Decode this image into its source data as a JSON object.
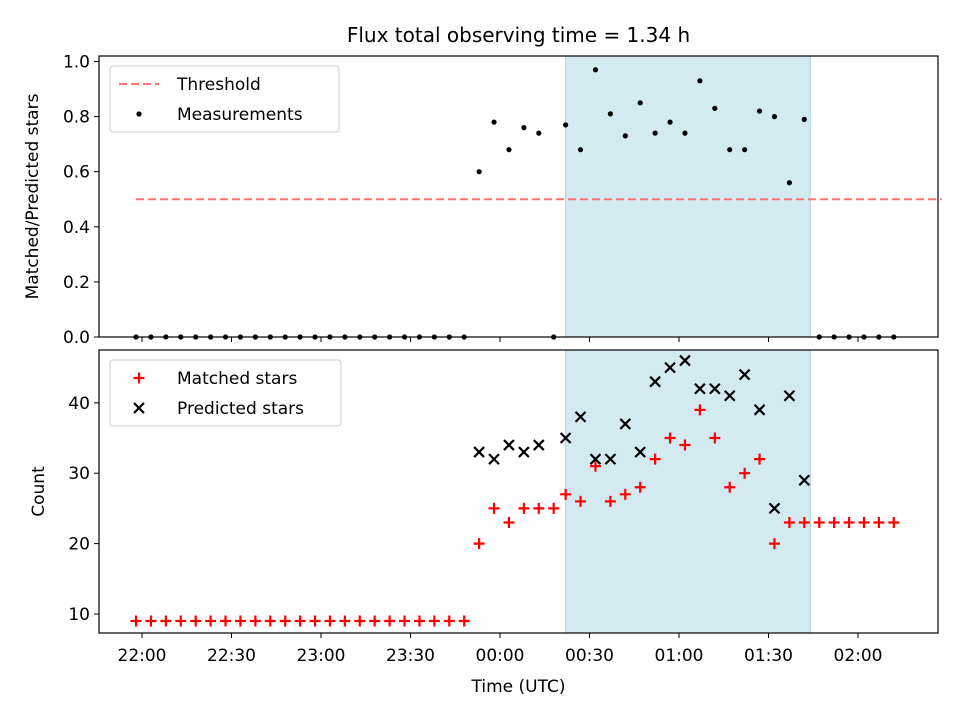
{
  "chart_data": [
    {
      "type": "scatter",
      "title": "Flux total observing time = 1.34 h",
      "ylabel": "Matched/Predicted stars",
      "xlabel": "",
      "ylim": [
        0,
        1.02
      ],
      "yticks": [
        "0.0",
        "0.2",
        "0.4",
        "0.6",
        "0.8",
        "1.0"
      ],
      "shaded_interval": [
        "00:22",
        "01:44"
      ],
      "shade_color": "#d3eaf0",
      "legend_position": "upper left",
      "threshold": {
        "name": "Threshold",
        "value": 0.5,
        "x_range": [
          "21:58",
          "02:28"
        ],
        "color": "#ff7373",
        "style": "dashed"
      },
      "series": [
        {
          "name": "Measurements",
          "color": "#000000",
          "marker": "dot",
          "x": [
            "21:58",
            "22:03",
            "22:08",
            "22:13",
            "22:18",
            "22:23",
            "22:28",
            "22:33",
            "22:38",
            "22:43",
            "22:48",
            "22:53",
            "22:58",
            "23:03",
            "23:08",
            "23:13",
            "23:18",
            "23:23",
            "23:28",
            "23:33",
            "23:38",
            "23:43",
            "23:48",
            "23:53",
            "23:58",
            "00:03",
            "00:08",
            "00:13",
            "00:18",
            "00:22",
            "00:27",
            "00:32",
            "00:37",
            "00:42",
            "00:47",
            "00:52",
            "00:57",
            "01:02",
            "01:07",
            "01:12",
            "01:17",
            "01:22",
            "01:27",
            "01:32",
            "01:37",
            "01:42",
            "01:47",
            "01:52",
            "01:57",
            "02:02",
            "02:07",
            "02:12"
          ],
          "y": [
            0,
            0,
            0,
            0,
            0,
            0,
            0,
            0,
            0,
            0,
            0,
            0,
            0,
            0,
            0,
            0,
            0,
            0,
            0,
            0,
            0,
            0,
            0,
            0.6,
            0.78,
            0.68,
            0.76,
            0.74,
            0,
            0.77,
            0.68,
            0.97,
            0.81,
            0.73,
            0.85,
            0.74,
            0.78,
            0.74,
            0.93,
            0.83,
            0.68,
            0.68,
            0.82,
            0.8,
            0.56,
            0.79,
            0,
            0,
            0,
            0,
            0,
            0
          ]
        }
      ]
    },
    {
      "type": "scatter",
      "title": "",
      "ylabel": "Count",
      "xlabel": "Time (UTC)",
      "ylim": [
        7.3,
        47.5
      ],
      "yticks": [
        "10",
        "20",
        "30",
        "40"
      ],
      "xticks": [
        "22:00",
        "22:30",
        "23:00",
        "23:30",
        "00:00",
        "00:30",
        "01:00",
        "01:30",
        "02:00"
      ],
      "shaded_interval": [
        "00:22",
        "01:44"
      ],
      "shade_color": "#d3eaf0",
      "legend_position": "upper left",
      "series": [
        {
          "name": "Matched stars",
          "color": "#ff0000",
          "marker": "plus",
          "x": [
            "21:58",
            "22:03",
            "22:08",
            "22:13",
            "22:18",
            "22:23",
            "22:28",
            "22:33",
            "22:38",
            "22:43",
            "22:48",
            "22:53",
            "22:58",
            "23:03",
            "23:08",
            "23:13",
            "23:18",
            "23:23",
            "23:28",
            "23:33",
            "23:38",
            "23:43",
            "23:48",
            "23:53",
            "23:58",
            "00:03",
            "00:08",
            "00:13",
            "00:18",
            "00:22",
            "00:27",
            "00:32",
            "00:37",
            "00:42",
            "00:47",
            "00:52",
            "00:57",
            "01:02",
            "01:07",
            "01:12",
            "01:17",
            "01:22",
            "01:27",
            "01:32",
            "01:37",
            "01:42",
            "01:47",
            "01:52",
            "01:57",
            "02:02",
            "02:07",
            "02:12"
          ],
          "y": [
            9,
            9,
            9,
            9,
            9,
            9,
            9,
            9,
            9,
            9,
            9,
            9,
            9,
            9,
            9,
            9,
            9,
            9,
            9,
            9,
            9,
            9,
            9,
            20,
            25,
            23,
            25,
            25,
            25,
            27,
            26,
            31,
            26,
            27,
            28,
            32,
            35,
            34,
            39,
            35,
            28,
            30,
            32,
            20,
            23,
            23,
            23,
            23,
            23,
            23,
            23,
            23
          ]
        },
        {
          "name": "Predicted stars",
          "color": "#000000",
          "marker": "x",
          "x": [
            "23:53",
            "23:58",
            "00:03",
            "00:08",
            "00:13",
            "00:22",
            "00:27",
            "00:32",
            "00:37",
            "00:42",
            "00:47",
            "00:52",
            "00:57",
            "01:02",
            "01:07",
            "01:12",
            "01:17",
            "01:22",
            "01:27",
            "01:32",
            "01:37",
            "01:42"
          ],
          "y": [
            33,
            32,
            34,
            33,
            34,
            35,
            38,
            32,
            32,
            37,
            33,
            43,
            45,
            46,
            42,
            42,
            41,
            44,
            39,
            25,
            41,
            29
          ]
        }
      ]
    }
  ]
}
